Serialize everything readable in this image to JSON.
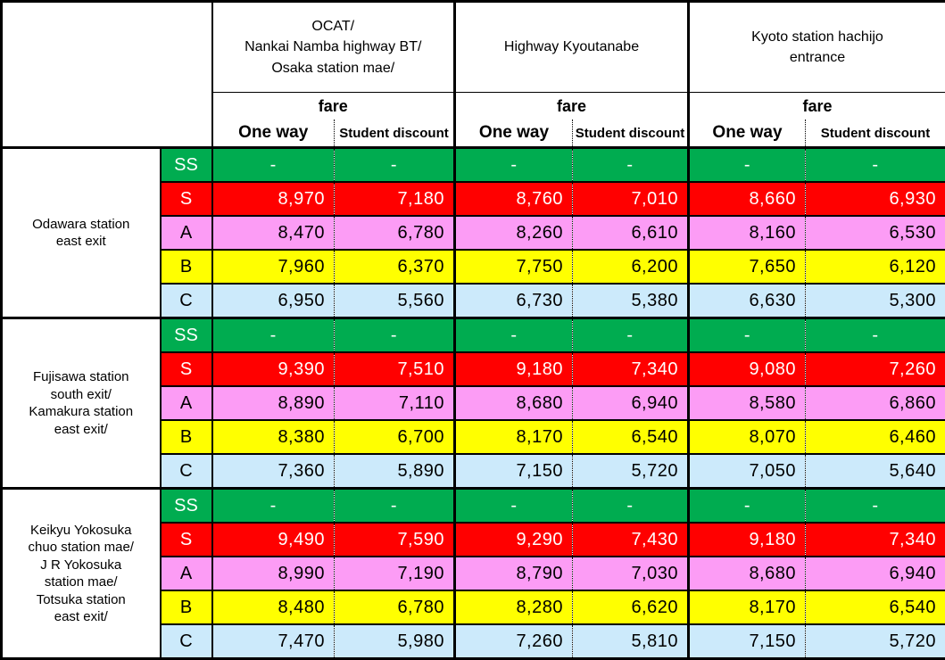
{
  "header": {
    "destinations": [
      "OCAT/\nNankai Namba highway BT/\nOsaka station mae/",
      "Highway Kyoutanabe",
      "Kyoto station hachijo\nentrance"
    ],
    "fare_label": "fare",
    "subcolumns": [
      "One way",
      "Student discount"
    ]
  },
  "colors": {
    "border": "#000000",
    "tier_SS_bg": "#00AC50",
    "tier_S_bg": "#FF0000",
    "tier_A_bg": "#FC9CF5",
    "tier_B_bg": "#FFFF00",
    "tier_C_bg": "#CCEAFB"
  },
  "tiers": {
    "SS": {
      "bg": "#00AC50",
      "fg": "#FFFFFF"
    },
    "S": {
      "bg": "#FF0000",
      "fg": "#FFFFFF"
    },
    "A": {
      "bg": "#FC9CF5",
      "fg": "#000000"
    },
    "B": {
      "bg": "#FFFF00",
      "fg": "#000000"
    },
    "C": {
      "bg": "#CCEAFB",
      "fg": "#000000"
    }
  },
  "groups": [
    {
      "origin": "Odawara station\neast exit",
      "rows": [
        {
          "tier": "SS",
          "fares": [
            "-",
            "-",
            "-",
            "-",
            "-",
            "-"
          ]
        },
        {
          "tier": "S",
          "fares": [
            "8,970",
            "7,180",
            "8,760",
            "7,010",
            "8,660",
            "6,930"
          ]
        },
        {
          "tier": "A",
          "fares": [
            "8,470",
            "6,780",
            "8,260",
            "6,610",
            "8,160",
            "6,530"
          ]
        },
        {
          "tier": "B",
          "fares": [
            "7,960",
            "6,370",
            "7,750",
            "6,200",
            "7,650",
            "6,120"
          ]
        },
        {
          "tier": "C",
          "fares": [
            "6,950",
            "5,560",
            "6,730",
            "5,380",
            "6,630",
            "5,300"
          ]
        }
      ]
    },
    {
      "origin": "Fujisawa station\nsouth exit/\nKamakura station\neast exit/",
      "rows": [
        {
          "tier": "SS",
          "fares": [
            "-",
            "-",
            "-",
            "-",
            "-",
            "-"
          ]
        },
        {
          "tier": "S",
          "fares": [
            "9,390",
            "7,510",
            "9,180",
            "7,340",
            "9,080",
            "7,260"
          ]
        },
        {
          "tier": "A",
          "fares": [
            "8,890",
            "7,110",
            "8,680",
            "6,940",
            "8,580",
            "6,860"
          ]
        },
        {
          "tier": "B",
          "fares": [
            "8,380",
            "6,700",
            "8,170",
            "6,540",
            "8,070",
            "6,460"
          ]
        },
        {
          "tier": "C",
          "fares": [
            "7,360",
            "5,890",
            "7,150",
            "5,720",
            "7,050",
            "5,640"
          ]
        }
      ]
    },
    {
      "origin": "Keikyu Yokosuka\nchuo station mae/\nJ R Yokosuka\nstation mae/\nTotsuka station\neast exit/",
      "rows": [
        {
          "tier": "SS",
          "fares": [
            "-",
            "-",
            "-",
            "-",
            "-",
            "-"
          ]
        },
        {
          "tier": "S",
          "fares": [
            "9,490",
            "7,590",
            "9,290",
            "7,430",
            "9,180",
            "7,340"
          ]
        },
        {
          "tier": "A",
          "fares": [
            "8,990",
            "7,190",
            "8,790",
            "7,030",
            "8,680",
            "6,940"
          ]
        },
        {
          "tier": "B",
          "fares": [
            "8,480",
            "6,780",
            "8,280",
            "6,620",
            "8,170",
            "6,540"
          ]
        },
        {
          "tier": "C",
          "fares": [
            "7,470",
            "5,980",
            "7,260",
            "5,810",
            "7,150",
            "5,720"
          ]
        }
      ]
    }
  ]
}
